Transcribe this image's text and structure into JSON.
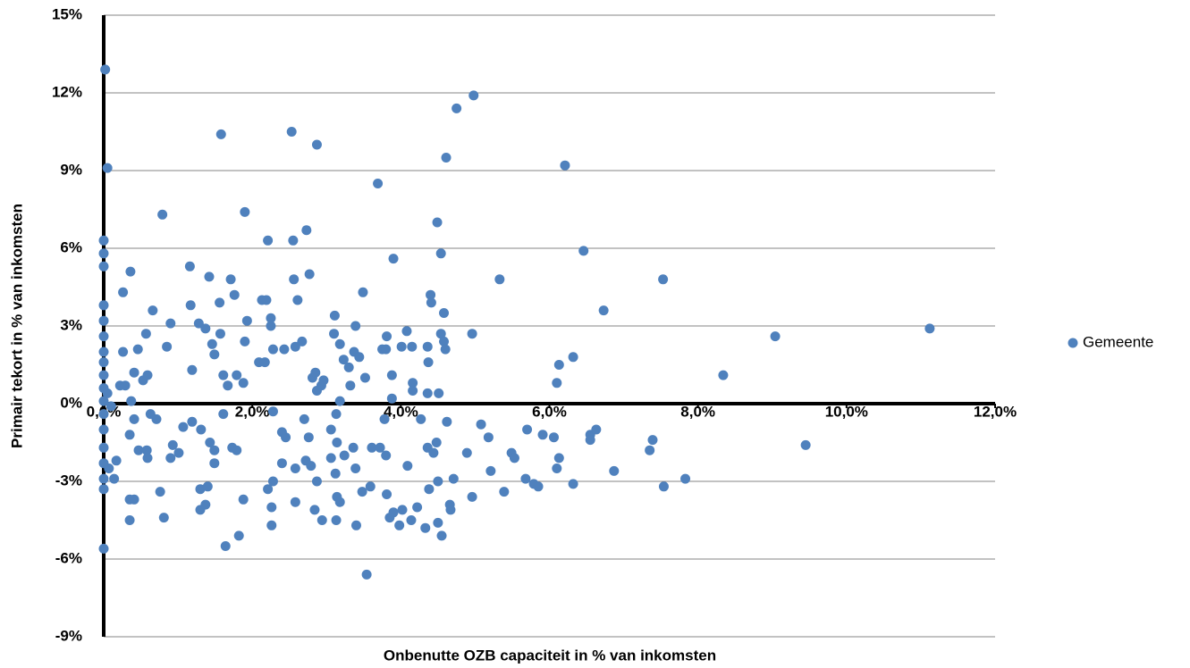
{
  "chart_data": {
    "type": "scatter",
    "x_label": "Onbenutte OZB capaciteit in % van inkomsten",
    "y_label": "Primair tekort in % van inkomsten",
    "xlim": [
      0,
      12
    ],
    "ylim": [
      -9,
      15
    ],
    "xticks": [
      {
        "value": 0,
        "label": "0,0%"
      },
      {
        "value": 2,
        "label": "2,0%"
      },
      {
        "value": 4,
        "label": "4,0%"
      },
      {
        "value": 6,
        "label": "6,0%"
      },
      {
        "value": 8,
        "label": "8,0%"
      },
      {
        "value": 10,
        "label": "10,0%"
      },
      {
        "value": 12,
        "label": "12,0%"
      }
    ],
    "yticks": [
      {
        "value": -9,
        "label": "-9%"
      },
      {
        "value": -6,
        "label": "-6%"
      },
      {
        "value": -3,
        "label": "-3%"
      },
      {
        "value": 0,
        "label": "0%"
      },
      {
        "value": 3,
        "label": "3%"
      },
      {
        "value": 6,
        "label": "6%"
      },
      {
        "value": 9,
        "label": "9%"
      },
      {
        "value": 12,
        "label": "12%"
      },
      {
        "value": 15,
        "label": "15%"
      }
    ],
    "grid": true,
    "legend_position": "right",
    "x": [
      0.02,
      0.05,
      0,
      0,
      0,
      0,
      0,
      0,
      0,
      0,
      0,
      0,
      0,
      0,
      0,
      0,
      0,
      0,
      0,
      0,
      0.05,
      0.1,
      0.17,
      0.14,
      0.07,
      0.26,
      0.36,
      0.26,
      0.41,
      0.46,
      0.57,
      0.66,
      0.79,
      0.85,
      0.9,
      0.53,
      0.59,
      0.22,
      0.29,
      0.37,
      0.41,
      0.35,
      0.47,
      0.58,
      0.59,
      0.35,
      0.41,
      0.35,
      0.76,
      0.81,
      0.71,
      0.63,
      0.93,
      0.9,
      1.01,
      1.16,
      1.17,
      1.19,
      1.28,
      1.37,
      1.42,
      1.46,
      1.49,
      1.58,
      1.56,
      1.57,
      1.71,
      1.76,
      1.9,
      1.93,
      1.9,
      1.61,
      1.67,
      1.79,
      1.88,
      1.07,
      1.19,
      1.31,
      1.43,
      1.49,
      1.3,
      1.3,
      1.37,
      1.4,
      1.49,
      1.64,
      1.82,
      1.88,
      1.73,
      1.79,
      1.61,
      2.13,
      2.19,
      2.21,
      2.25,
      2.25,
      2.28,
      2.09,
      2.17,
      2.43,
      2.53,
      2.55,
      2.56,
      2.61,
      2.58,
      2.73,
      2.77,
      2.67,
      2.87,
      2.81,
      2.85,
      2.93,
      2.96,
      2.87,
      2.28,
      2.4,
      2.45,
      2.28,
      2.21,
      2.26,
      2.26,
      2.4,
      2.58,
      2.58,
      2.72,
      2.79,
      2.87,
      2.84,
      2.94,
      2.7,
      2.76,
      3.11,
      3.18,
      3.1,
      3.23,
      3.3,
      3.37,
      3.39,
      3.49,
      3.44,
      3.52,
      3.32,
      3.18,
      3.13,
      3.06,
      3.14,
      3.06,
      3.12,
      3.18,
      3.14,
      3.13,
      3.24,
      3.36,
      3.39,
      3.4,
      3.48,
      3.54,
      3.59,
      3.61,
      3.69,
      3.75,
      3.8,
      3.81,
      3.9,
      3.88,
      3.88,
      4.01,
      4.08,
      4.15,
      4.16,
      4.16,
      3.78,
      3.72,
      3.8,
      3.81,
      3.85,
      3.9,
      3.98,
      4.02,
      4.09,
      4.14,
      4.22,
      4.36,
      4.4,
      4.41,
      4.37,
      4.36,
      4.49,
      4.54,
      4.54,
      4.58,
      4.6,
      4.58,
      4.61,
      4.51,
      4.75,
      4.98,
      4.27,
      4.36,
      4.44,
      4.48,
      4.38,
      4.5,
      4.33,
      4.5,
      4.55,
      4.62,
      4.66,
      4.67,
      4.71,
      4.89,
      4.96,
      5.08,
      5.18,
      5.21,
      4.96,
      5.33,
      5.39,
      5.49,
      5.53,
      5.68,
      5.79,
      5.85,
      5.7,
      5.91,
      6.06,
      6.1,
      6.13,
      6.1,
      6.13,
      6.32,
      6.21,
      6.46,
      6.32,
      6.55,
      6.55,
      6.63,
      6.73,
      6.87,
      7.35,
      7.39,
      7.53,
      7.54,
      7.83,
      8.34,
      9.04,
      9.45,
      11.12
    ],
    "series": [
      {
        "name": "Gemeente",
        "color": "#4f81bd",
        "values": [
          12.9,
          9.1,
          6.3,
          5.8,
          5.3,
          3.8,
          3.2,
          2.6,
          2.0,
          1.6,
          1.1,
          0.6,
          0.1,
          -0.4,
          -1.0,
          -1.7,
          -2.3,
          -2.9,
          -3.3,
          -5.6,
          0.4,
          -0.1,
          -2.2,
          -2.9,
          -2.5,
          4.3,
          5.1,
          2.0,
          1.2,
          2.1,
          2.7,
          3.6,
          7.3,
          2.2,
          3.1,
          0.9,
          1.1,
          0.7,
          0.7,
          0.1,
          -0.6,
          -1.2,
          -1.8,
          -1.8,
          -2.1,
          -3.7,
          -3.7,
          -4.5,
          -3.4,
          -4.4,
          -0.6,
          -0.4,
          -1.6,
          -2.1,
          -1.9,
          5.3,
          3.8,
          1.3,
          3.1,
          2.9,
          4.9,
          2.3,
          1.9,
          10.4,
          3.9,
          2.7,
          4.8,
          4.2,
          7.4,
          3.2,
          2.4,
          1.1,
          0.7,
          1.1,
          0.8,
          -0.9,
          -0.7,
          -1.0,
          -1.5,
          -1.8,
          -3.3,
          -4.1,
          -3.9,
          -3.2,
          -2.3,
          -5.5,
          -5.1,
          -3.7,
          -1.7,
          -1.8,
          -0.4,
          4.0,
          4.0,
          6.3,
          3.3,
          3.0,
          2.1,
          1.6,
          1.6,
          2.1,
          10.5,
          6.3,
          4.8,
          4.0,
          2.2,
          6.7,
          5.0,
          2.4,
          10.0,
          1.0,
          1.2,
          0.7,
          0.9,
          0.5,
          -0.3,
          -1.1,
          -1.3,
          -3.0,
          -3.3,
          -4.0,
          -4.7,
          -2.3,
          -2.5,
          -3.8,
          -2.2,
          -2.4,
          -3.0,
          -4.1,
          -4.5,
          -0.6,
          -1.3,
          3.4,
          2.3,
          2.7,
          1.7,
          1.4,
          2.0,
          3.0,
          4.3,
          1.8,
          1.0,
          0.7,
          0.1,
          -0.4,
          -1.0,
          -1.5,
          -2.1,
          -2.7,
          -3.8,
          -3.6,
          -4.5,
          -2.0,
          -1.7,
          -2.5,
          -4.7,
          -3.4,
          -6.6,
          -3.2,
          -1.7,
          8.5,
          2.1,
          2.1,
          2.6,
          5.6,
          1.1,
          0.2,
          2.2,
          2.8,
          2.2,
          0.8,
          0.5,
          -0.6,
          -1.7,
          -2.0,
          -3.5,
          -4.4,
          -4.2,
          -4.7,
          -4.1,
          -2.4,
          -4.5,
          -4.0,
          2.2,
          4.2,
          3.9,
          1.6,
          0.4,
          7.0,
          5.8,
          2.7,
          2.4,
          2.1,
          3.5,
          9.5,
          0.4,
          11.4,
          11.9,
          -0.6,
          -1.7,
          -1.9,
          -1.5,
          -3.3,
          -3.0,
          -4.8,
          -4.6,
          -5.1,
          -0.7,
          -3.9,
          -4.1,
          -2.9,
          -1.9,
          -3.6,
          -0.8,
          -1.3,
          -2.6,
          2.7,
          4.8,
          -3.4,
          -1.9,
          -2.1,
          -2.9,
          -3.1,
          -3.2,
          -1.0,
          -1.2,
          -1.3,
          -2.5,
          -2.1,
          0.8,
          1.5,
          1.8,
          9.2,
          5.9,
          -3.1,
          -1.2,
          -1.4,
          -1.0,
          3.6,
          -2.6,
          -1.8,
          -1.4,
          4.8,
          -3.2,
          -2.9,
          1.1,
          2.6,
          -1.6,
          2.9
        ]
      }
    ]
  }
}
